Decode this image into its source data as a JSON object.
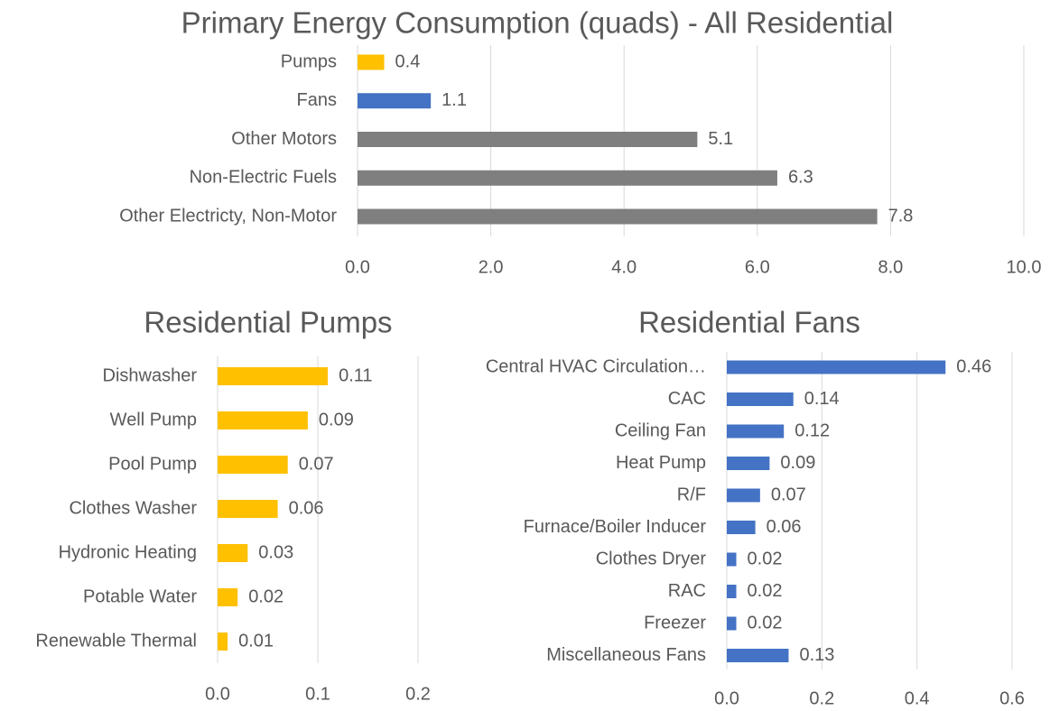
{
  "chart_data": [
    {
      "type": "bar",
      "orientation": "horizontal",
      "title": "Primary Energy Consumption (quads) - All Residential",
      "categories": [
        "Pumps",
        "Fans",
        "Other Motors",
        "Non-Electric Fuels",
        "Other Electricty, Non-Motor"
      ],
      "values": [
        0.4,
        1.1,
        5.1,
        6.3,
        7.8
      ],
      "colors": [
        "#ffc000",
        "#4472c4",
        "#7f7f7f",
        "#7f7f7f",
        "#7f7f7f"
      ],
      "xlim": [
        0,
        10
      ],
      "xticks": [
        {
          "value": 0,
          "label": "0.0"
        },
        {
          "value": 2,
          "label": "2.0"
        },
        {
          "value": 4,
          "label": "4.0"
        },
        {
          "value": 6,
          "label": "6.0"
        },
        {
          "value": 8,
          "label": "8.0"
        },
        {
          "value": 10,
          "label": "10.0"
        }
      ],
      "grid": true
    },
    {
      "type": "bar",
      "orientation": "horizontal",
      "title": "Residential Pumps",
      "categories": [
        "Dishwasher",
        "Well Pump",
        "Pool Pump",
        "Clothes Washer",
        "Hydronic Heating",
        "Potable Water",
        "Renewable Thermal"
      ],
      "values": [
        0.11,
        0.09,
        0.07,
        0.06,
        0.03,
        0.02,
        0.01
      ],
      "color": "#ffc000",
      "xlim": [
        0,
        0.2
      ],
      "xticks": [
        {
          "value": 0,
          "label": "0.0"
        },
        0.1,
        0.2
      ],
      "grid": true
    },
    {
      "type": "bar",
      "orientation": "horizontal",
      "title": "Residential Fans",
      "categories": [
        "Central HVAC Circulation…",
        "CAC",
        "Ceiling Fan",
        "Heat Pump",
        "R/F",
        "Furnace/Boiler Inducer",
        "Clothes Dryer",
        "RAC",
        "Freezer",
        "Miscellaneous Fans"
      ],
      "values": [
        0.46,
        0.14,
        0.12,
        0.09,
        0.07,
        0.06,
        0.02,
        0.02,
        0.02,
        0.13
      ],
      "color": "#4472c4",
      "xlim": [
        0,
        0.6
      ],
      "xticks": [
        {
          "value": 0,
          "label": "0.0"
        },
        0.2,
        0.4,
        0.6
      ],
      "grid": true
    }
  ]
}
